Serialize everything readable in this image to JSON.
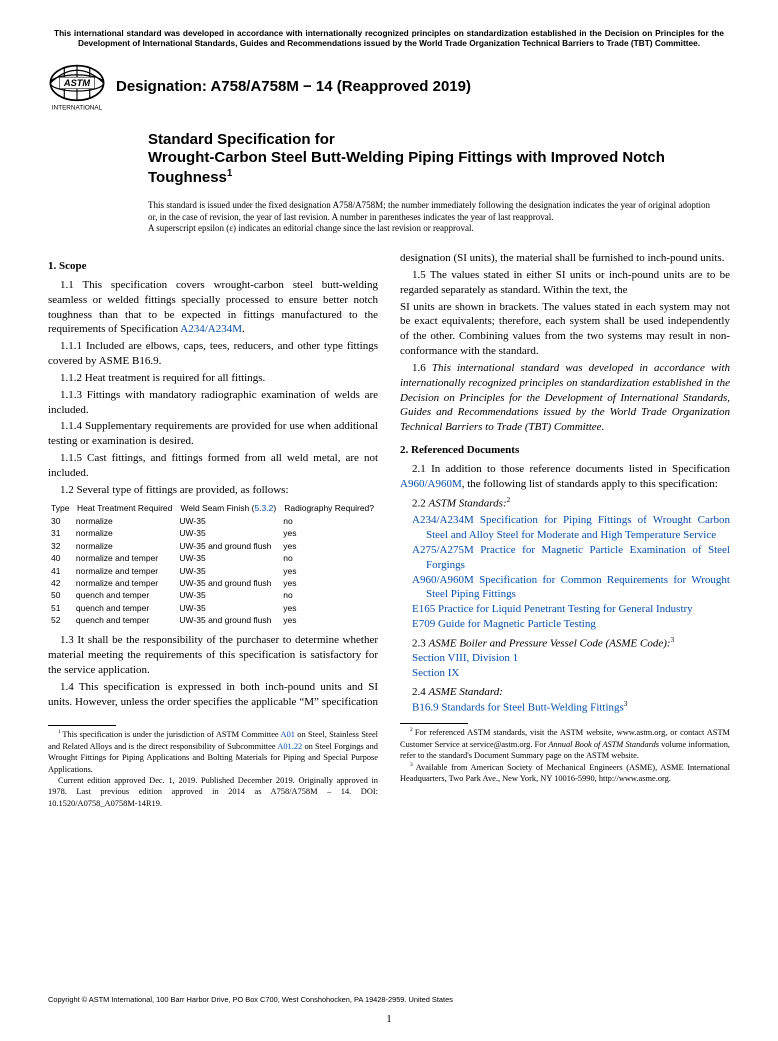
{
  "top_notice": "This international standard was developed in accordance with internationally recognized principles on standardization established in the Decision on Principles for the Development of International Standards, Guides and Recommendations issued by the World Trade Organization Technical Barriers to Trade (TBT) Committee.",
  "designation": "Designation: A758/A758M − 14 (Reapproved 2019)",
  "title_pre": "Standard Specification for",
  "title_main": "Wrought-Carbon Steel Butt-Welding Piping Fittings with Improved Notch Toughness",
  "title_sup": "1",
  "issued_note_l1": "This standard is issued under the fixed designation A758/A758M; the number immediately following the designation indicates the year of original adoption or, in the case of revision, the year of last revision. A number in parentheses indicates the year of last reapproval.",
  "issued_note_l2_a": "A superscript epsilon (",
  "issued_note_l2_b": ") indicates an editorial change since the last revision or reapproval.",
  "epsilon": "ε",
  "scope": {
    "head": "1. Scope",
    "p1_1a": "1.1 This specification covers wrought-carbon steel butt-welding seamless or welded fittings specially processed to ensure better notch toughness than that to be expected in fittings manufactured to the requirements of Specification ",
    "p1_1_link": "A234/A234M",
    "p1_1b": ".",
    "p1_1_1": "1.1.1 Included are elbows, caps, tees, reducers, and other type fittings covered by ASME B16.9.",
    "p1_1_2": "1.1.2 Heat treatment is required for all fittings.",
    "p1_1_3": "1.1.3 Fittings with mandatory radiographic examination of welds are included.",
    "p1_1_4": "1.1.4 Supplementary requirements are provided for use when additional testing or examination is desired.",
    "p1_1_5": "1.1.5 Cast fittings, and fittings formed from all weld metal, are not included.",
    "p1_2": "1.2 Several type of fittings are provided, as follows:",
    "table": {
      "headers": [
        "Type",
        "Heat Treatment Required",
        "Weld Seam Finish (",
        "Radiography Required?"
      ],
      "finish_link": "5.3.2",
      "finish_close": ")",
      "rows": [
        [
          "30",
          "normalize",
          "UW-35",
          "no"
        ],
        [
          "31",
          "normalize",
          "UW-35",
          "yes"
        ],
        [
          "32",
          "normalize",
          "UW-35 and ground flush",
          "yes"
        ],
        [
          "40",
          "normalize and temper",
          "UW-35",
          "no"
        ],
        [
          "41",
          "normalize and temper",
          "UW-35",
          "yes"
        ],
        [
          "42",
          "normalize and temper",
          "UW-35 and ground flush",
          "yes"
        ],
        [
          "50",
          "quench and temper",
          "UW-35",
          "no"
        ],
        [
          "51",
          "quench and temper",
          "UW-35",
          "yes"
        ],
        [
          "52",
          "quench and temper",
          "UW-35 and ground flush",
          "yes"
        ]
      ]
    },
    "p1_3": "1.3 It shall be the responsibility of the purchaser to determine whether material meeting the requirements of this specification is satisfactory for the service application.",
    "p1_4": "1.4 This specification is expressed in both inch-pound units and SI units. However, unless the order specifies the applicable “M” specification designation (SI units), the material shall be furnished to inch-pound units.",
    "p1_5a": "1.5 The values stated in either SI units or inch-pound units are to be regarded separately as standard. Within the text, the ",
    "p1_5b": "SI units are shown in brackets. The values stated in each system may not be exact equivalents; therefore, each system shall be used independently of the other. Combining values from the two systems may result in non-conformance with the standard.",
    "p1_6": "1.6 This international standard was developed in accordance with internationally recognized principles on standardization established in the Decision on Principles for the Development of International Standards, Guides and Recommendations issued by the World Trade Organization Technical Barriers to Trade (TBT) Committee."
  },
  "refs": {
    "head": "2. Referenced Documents",
    "p2_1a": "2.1 In addition to those reference documents listed in Specification ",
    "p2_1_link": "A960/A960M",
    "p2_1b": ", the following list of standards apply to this specification:",
    "astm_head_a": "2.2 ",
    "astm_head_b": "ASTM Standards:",
    "astm_sup": "2",
    "astm": [
      {
        "code": "A234/A234M",
        "title": "Specification for Piping Fittings of Wrought Carbon Steel and Alloy Steel for Moderate and High Temperature Service"
      },
      {
        "code": "A275/A275M",
        "title": "Practice for Magnetic Particle Examination of Steel Forgings"
      },
      {
        "code": "A960/A960M",
        "title": "Specification for Common Requirements for Wrought Steel Piping Fittings"
      },
      {
        "code": "E165",
        "title": "Practice for Liquid Penetrant Testing for General Industry"
      },
      {
        "code": "E709",
        "title": "Guide for Magnetic Particle Testing"
      }
    ],
    "asme_code_head_a": "2.3 ",
    "asme_code_head_b": "ASME Boiler and Pressure Vessel Code (ASME Code):",
    "asme_code_sup": "3",
    "asme_code": [
      "Section VIII, Division 1",
      "Section IX"
    ],
    "asme_head_a": "2.4 ",
    "asme_head_b": "ASME Standard:",
    "asme_item_code": "B16.9",
    "asme_item_title": "Standards for Steel Butt-Welding Fittings",
    "asme_item_sup": "3"
  },
  "footnotes": {
    "fn1a": "This specification is under the jurisdiction of ASTM Committee ",
    "fn1_link1": "A01",
    "fn1b": " on Steel, Stainless Steel and Related Alloys and is the direct responsibility of Subcommittee ",
    "fn1_link2": "A01.22",
    "fn1c": " on Steel Forgings and Wrought Fittings for Piping Applications and Bolting Materials for Piping and Special Purpose Applications.",
    "fn1d": "Current edition approved Dec. 1, 2019. Published December 2019. Originally approved in 1978. Last previous edition approved in 2014 as A758/A758M – 14. DOI: 10.1520/A0758_A0758M-14R19.",
    "fn2a": "For referenced ASTM standards, visit the ASTM website, www.astm.org, or contact ASTM Customer Service at service@astm.org. For ",
    "fn2b": "Annual Book of ASTM Standards",
    "fn2c": " volume information, refer to the standard's Document Summary page on the ASTM website.",
    "fn3": "Available from American Society of Mechanical Engineers (ASME), ASME International Headquarters, Two Park Ave., New York, NY 10016-5990, http://www.asme.org."
  },
  "copyright": "Copyright © ASTM International, 100 Barr Harbor Drive, PO Box C700, West Conshohocken, PA 19428-2959. United States",
  "pagenum": "1",
  "colors": {
    "link": "#0a4fa8",
    "text": "#000000",
    "bg": "#ffffff"
  }
}
